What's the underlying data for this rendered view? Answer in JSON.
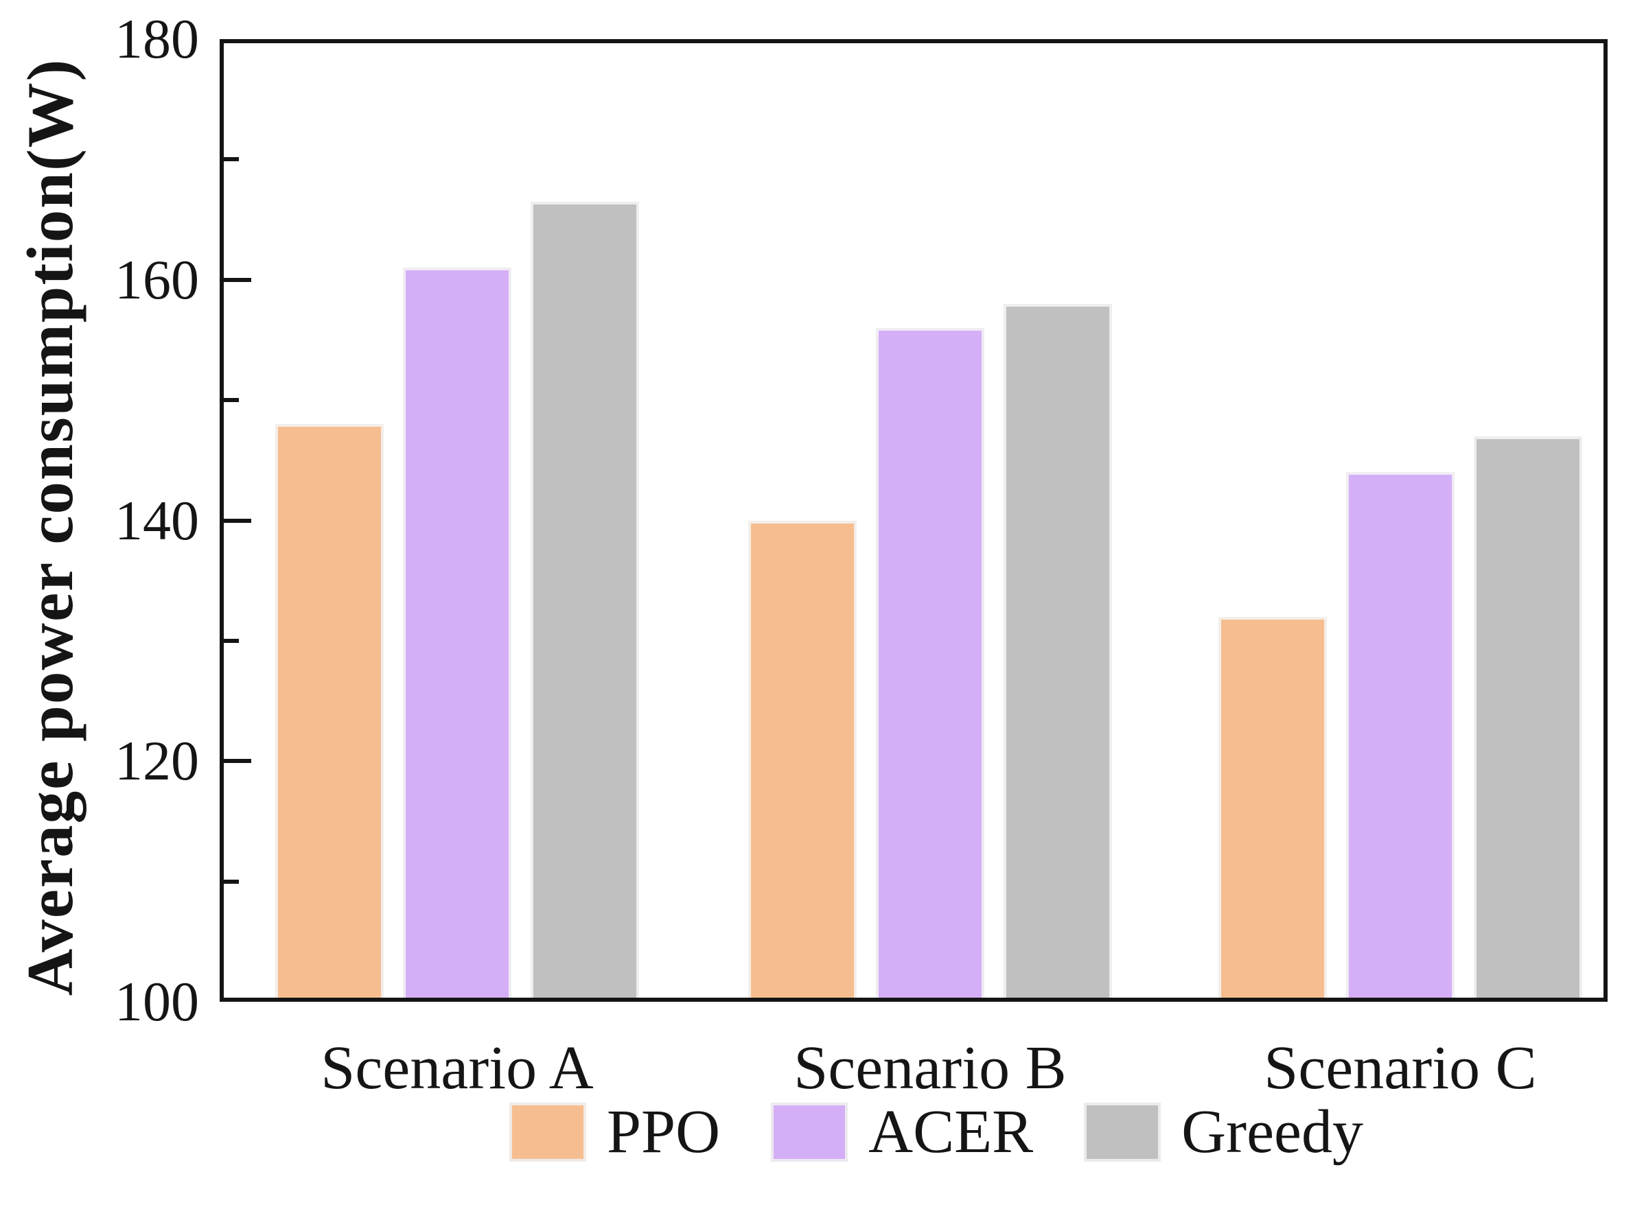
{
  "chart_data": {
    "type": "bar",
    "title": "",
    "xlabel": "",
    "ylabel": "Average power consumption(W)",
    "categories": [
      "Scenario A",
      "Scenario B",
      "Scenario C"
    ],
    "series": [
      {
        "name": "PPO",
        "color": "#F6BE90",
        "values": [
          148,
          140,
          132
        ]
      },
      {
        "name": "ACER",
        "color": "#D4AEF6",
        "values": [
          161,
          156,
          144
        ]
      },
      {
        "name": "Greedy",
        "color": "#C0C0C0",
        "values": [
          166.5,
          158,
          147
        ]
      }
    ],
    "ylim": [
      100,
      180
    ],
    "yticks": [
      100,
      120,
      140,
      160,
      180
    ],
    "minor_yticks": [
      110,
      130,
      150,
      170
    ],
    "grid": false,
    "legend_position": "bottom"
  },
  "axis": {
    "color": "#141414",
    "y_tick_labels": [
      "100",
      "120",
      "140",
      "160",
      "180"
    ]
  }
}
